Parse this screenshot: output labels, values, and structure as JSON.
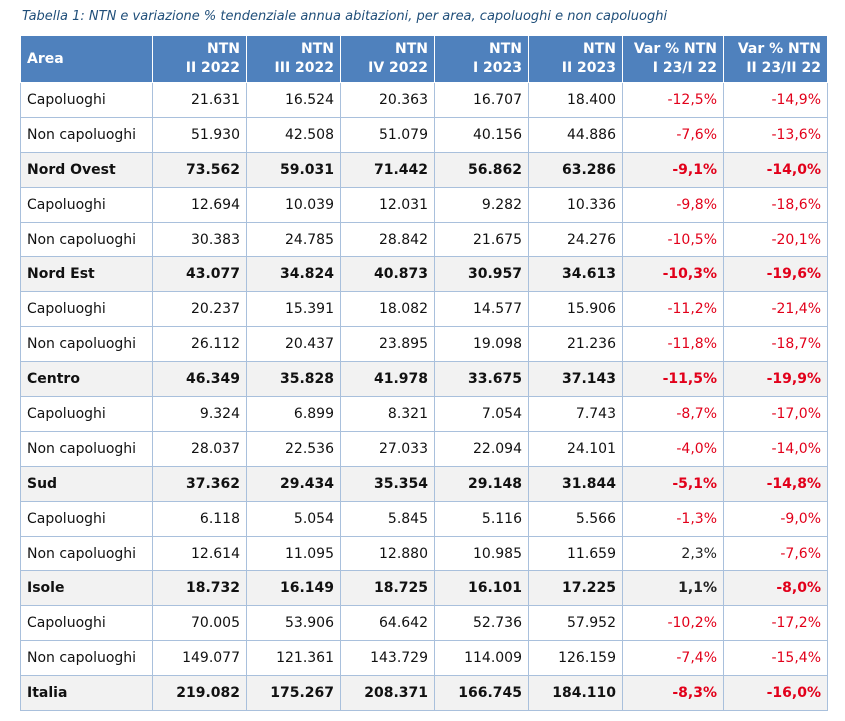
{
  "caption": "Tabella 1: NTN e variazione % tendenziale annua abitazioni, per area, capoluoghi e non capoluoghi",
  "headers": [
    {
      "l1": "Area",
      "l2": ""
    },
    {
      "l1": "NTN",
      "l2": "II 2022"
    },
    {
      "l1": "NTN",
      "l2": "III 2022"
    },
    {
      "l1": "NTN",
      "l2": "IV 2022"
    },
    {
      "l1": "NTN",
      "l2": "I 2023"
    },
    {
      "l1": "NTN",
      "l2": "II 2023"
    },
    {
      "l1": "Var % NTN",
      "l2": "I 23/I 22"
    },
    {
      "l1": "Var % NTN",
      "l2": "II 23/II 22"
    }
  ],
  "rows": [
    {
      "area": "Capoluoghi",
      "bold": false,
      "v": [
        "21.631",
        "16.524",
        "20.363",
        "16.707",
        "18.400",
        "-12,5%",
        "-14,9%"
      ]
    },
    {
      "area": "Non capoluoghi",
      "bold": false,
      "v": [
        "51.930",
        "42.508",
        "51.079",
        "40.156",
        "44.886",
        "-7,6%",
        "-13,6%"
      ]
    },
    {
      "area": "Nord Ovest",
      "bold": true,
      "v": [
        "73.562",
        "59.031",
        "71.442",
        "56.862",
        "63.286",
        "-9,1%",
        "-14,0%"
      ]
    },
    {
      "area": "Capoluoghi",
      "bold": false,
      "v": [
        "12.694",
        "10.039",
        "12.031",
        "9.282",
        "10.336",
        "-9,8%",
        "-18,6%"
      ]
    },
    {
      "area": "Non capoluoghi",
      "bold": false,
      "v": [
        "30.383",
        "24.785",
        "28.842",
        "21.675",
        "24.276",
        "-10,5%",
        "-20,1%"
      ]
    },
    {
      "area": "Nord Est",
      "bold": true,
      "v": [
        "43.077",
        "34.824",
        "40.873",
        "30.957",
        "34.613",
        "-10,3%",
        "-19,6%"
      ]
    },
    {
      "area": "Capoluoghi",
      "bold": false,
      "v": [
        "20.237",
        "15.391",
        "18.082",
        "14.577",
        "15.906",
        "-11,2%",
        "-21,4%"
      ]
    },
    {
      "area": "Non capoluoghi",
      "bold": false,
      "v": [
        "26.112",
        "20.437",
        "23.895",
        "19.098",
        "21.236",
        "-11,8%",
        "-18,7%"
      ]
    },
    {
      "area": "Centro",
      "bold": true,
      "v": [
        "46.349",
        "35.828",
        "41.978",
        "33.675",
        "37.143",
        "-11,5%",
        "-19,9%"
      ]
    },
    {
      "area": "Capoluoghi",
      "bold": false,
      "v": [
        "9.324",
        "6.899",
        "8.321",
        "7.054",
        "7.743",
        "-8,7%",
        "-17,0%"
      ]
    },
    {
      "area": "Non capoluoghi",
      "bold": false,
      "v": [
        "28.037",
        "22.536",
        "27.033",
        "22.094",
        "24.101",
        "-4,0%",
        "-14,0%"
      ]
    },
    {
      "area": "Sud",
      "bold": true,
      "v": [
        "37.362",
        "29.434",
        "35.354",
        "29.148",
        "31.844",
        "-5,1%",
        "-14,8%"
      ]
    },
    {
      "area": "Capoluoghi",
      "bold": false,
      "v": [
        "6.118",
        "5.054",
        "5.845",
        "5.116",
        "5.566",
        "-1,3%",
        "-9,0%"
      ]
    },
    {
      "area": "Non capoluoghi",
      "bold": false,
      "v": [
        "12.614",
        "11.095",
        "12.880",
        "10.985",
        "11.659",
        "2,3%",
        "-7,6%"
      ]
    },
    {
      "area": "Isole",
      "bold": true,
      "v": [
        "18.732",
        "16.149",
        "18.725",
        "16.101",
        "17.225",
        "1,1%",
        "-8,0%"
      ]
    },
    {
      "area": "Capoluoghi",
      "bold": false,
      "v": [
        "70.005",
        "53.906",
        "64.642",
        "52.736",
        "57.952",
        "-10,2%",
        "-17,2%"
      ]
    },
    {
      "area": "Non capoluoghi",
      "bold": false,
      "v": [
        "149.077",
        "121.361",
        "143.729",
        "114.009",
        "126.159",
        "-7,4%",
        "-15,4%"
      ]
    },
    {
      "area": "Italia",
      "bold": true,
      "v": [
        "219.082",
        "175.267",
        "208.371",
        "166.745",
        "184.110",
        "-8,3%",
        "-16,0%"
      ]
    }
  ],
  "colors": {
    "header_bg": "#4f81bd",
    "negative": "#e2001a",
    "border": "#a9c0dc",
    "bold_row_bg": "#f2f2f2"
  }
}
